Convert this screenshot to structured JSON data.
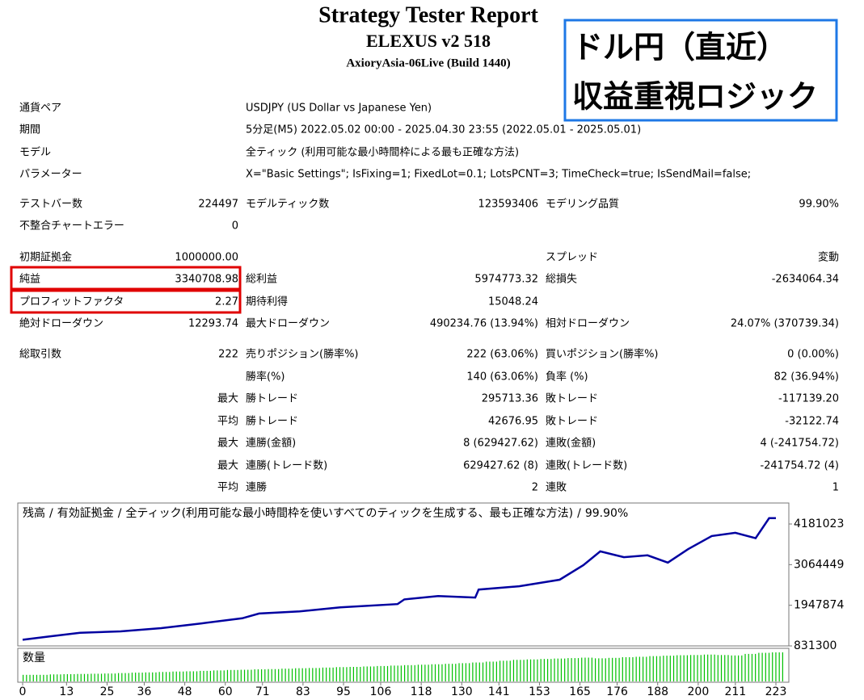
{
  "header": {
    "title": "Strategy Tester Report",
    "subtitle": "ELEXUS v2 518",
    "build": "AxioryAsia-06Live (Build 1440)"
  },
  "overlay": {
    "line1": "ドル円（直近）",
    "line2": "収益重視ロジック"
  },
  "summary": [
    {
      "l1": "通貨ペア",
      "span": "USDJPY (US Dollar vs Japanese Yen)"
    },
    {
      "l1": "期間",
      "span": "5分足(M5) 2022.05.02 00:00 - 2025.04.30 23:55 (2022.05.01 - 2025.05.01)"
    },
    {
      "l1": "モデル",
      "span": "全ティック (利用可能な最小時間枠による最も正確な方法)"
    },
    {
      "l1": "パラメーター",
      "span": "X=\"Basic Settings\"; IsFixing=1; FixedLot=0.1; LotsPCNT=3; TimeCheck=true; IsSendMail=false;"
    },
    {
      "l1": "テストバー数",
      "v1": "224497",
      "l2": "モデルティック数",
      "v2": "123593406",
      "l3": "モデリング品質",
      "v3": "99.90%"
    },
    {
      "l1": "不整合チャートエラー",
      "v1": "0"
    },
    {
      "l1": "初期証拠金",
      "v1": "1000000.00",
      "l3": "スプレッド",
      "v3": "変動"
    },
    {
      "l1": "純益",
      "v1": "3340708.98",
      "l2": "総利益",
      "v2": "5974773.32",
      "l3": "総損失",
      "v3": "-2634064.34"
    },
    {
      "l1": "プロフィットファクタ",
      "v1": "2.27",
      "l2": "期待利得",
      "v2": "15048.24"
    },
    {
      "l1": "絶対ドローダウン",
      "v1": "12293.74",
      "l2": "最大ドローダウン",
      "v2": "490234.76 (13.94%)",
      "l3": "相対ドローダウン",
      "v3": "24.07% (370739.34)"
    },
    {
      "l1": "総取引数",
      "v1": "222",
      "l2": "売りポジション(勝率%)",
      "v2": "222 (63.06%)",
      "l3": "買いポジション(勝率%)",
      "v3": "0 (0.00%)"
    },
    {
      "l2": "勝率(%)",
      "v2": "140 (63.06%)",
      "l3": "負率 (%)",
      "v3": "82 (36.94%)"
    },
    {
      "v1": "最大",
      "l2": "勝トレード",
      "v2": "295713.36",
      "l3": "敗トレード",
      "v3": "-117139.20"
    },
    {
      "v1": "平均",
      "l2": "勝トレード",
      "v2": "42676.95",
      "l3": "敗トレード",
      "v3": "-32122.74"
    },
    {
      "v1": "最大",
      "l2": "連勝(金額)",
      "v2": "8 (629427.62)",
      "l3": "連敗(金額)",
      "v3": "4 (-241754.72)"
    },
    {
      "v1": "最大",
      "l2": "連勝(トレード数)",
      "v2": "629427.62 (8)",
      "l3": "連敗(トレード数)",
      "v3": "-241754.72 (4)"
    },
    {
      "v1": "平均",
      "l2": "連勝",
      "v2": "2",
      "l3": "連敗",
      "v3": "1"
    }
  ],
  "chart_data": {
    "type": "line",
    "separator": "/",
    "equity_label": "有効証拠金",
    "equity_color": "#00a000",
    "note": "全ティック(利用可能な最小時間枠を使いすべてのティックを生成する、最も正確な方法)",
    "quality": "99.90%",
    "series": [
      {
        "name": "残高",
        "color": "#0000a0",
        "x": [
          0,
          8,
          17,
          29,
          41,
          53,
          65,
          70,
          82,
          94,
          111,
          113,
          123,
          134,
          135,
          147,
          159,
          166,
          171,
          178,
          185,
          191,
          197,
          204,
          211,
          217,
          221,
          223
        ],
        "values": [
          1000000,
          1090000,
          1190000,
          1230000,
          1320000,
          1450000,
          1590000,
          1720000,
          1780000,
          1890000,
          1980000,
          2110000,
          2200000,
          2160000,
          2380000,
          2470000,
          2650000,
          3050000,
          3430000,
          3270000,
          3320000,
          3120000,
          3490000,
          3850000,
          3940000,
          3790000,
          4340000,
          4340000
        ]
      }
    ],
    "xlim": [
      0,
      223
    ],
    "xticks": [
      0,
      13,
      25,
      36,
      48,
      60,
      71,
      83,
      95,
      106,
      118,
      130,
      141,
      153,
      165,
      176,
      188,
      200,
      211,
      223
    ],
    "ylim": [
      831300,
      4757900
    ],
    "yticks": [
      4181023,
      3064449,
      1947874,
      831300
    ],
    "volume": {
      "label": "数量",
      "color": "#00c000",
      "values": [
        0.3,
        0.3,
        0.32,
        0.33,
        0.34,
        0.35,
        0.36,
        0.38,
        0.4,
        0.41,
        0.43,
        0.45,
        0.46,
        0.48,
        0.5,
        0.52,
        0.53,
        0.55,
        0.56,
        0.58,
        0.6,
        0.61,
        0.63,
        0.65,
        0.66,
        0.68,
        0.7,
        0.72,
        0.74,
        0.76,
        0.78,
        0.8,
        0.83,
        0.86,
        0.9,
        0.94,
        0.98,
        1.0,
        1.02,
        1.04,
        1.06,
        1.08,
        1.05,
        1.07,
        1.1,
        1.12,
        1.15,
        1.17,
        1.19,
        1.2,
        1.22,
        1.2,
        1.18,
        1.25,
        1.3,
        1.32
      ]
    }
  }
}
